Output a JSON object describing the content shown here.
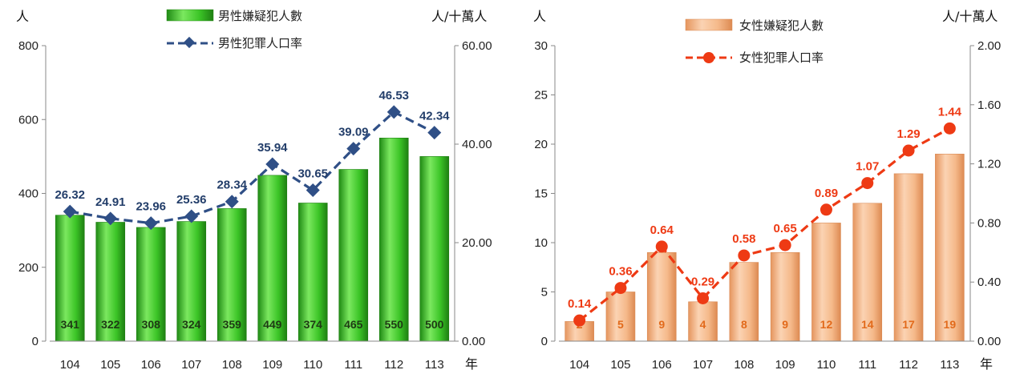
{
  "chart_data": [
    {
      "type": "bar",
      "categories": [
        "104",
        "105",
        "106",
        "107",
        "108",
        "109",
        "110",
        "111",
        "112",
        "113"
      ],
      "xunit": "年",
      "ylabel_left": "人",
      "ylabel_right": "人/十萬人",
      "ylim_left": [
        0,
        800
      ],
      "yticks_left": [
        "0",
        "200",
        "400",
        "600",
        "800"
      ],
      "ylim_right": [
        0,
        60
      ],
      "yticks_right": [
        "0.00",
        "20.00",
        "40.00",
        "60.00"
      ],
      "series": [
        {
          "name": "男性嫌疑犯人數",
          "kind": "bar",
          "axis": "left",
          "color": "#3fc22a",
          "values": [
            341,
            322,
            308,
            324,
            359,
            449,
            374,
            465,
            550,
            500
          ],
          "labels": [
            "341",
            "322",
            "308",
            "324",
            "359",
            "449",
            "374",
            "465",
            "550",
            "500"
          ]
        },
        {
          "name": "男性犯罪人口率",
          "kind": "line",
          "axis": "right",
          "color": "#2f4f86",
          "values": [
            26.32,
            24.91,
            23.96,
            25.36,
            28.34,
            35.94,
            30.65,
            39.09,
            46.53,
            42.34
          ],
          "labels": [
            "26.32",
            "24.91",
            "23.96",
            "25.36",
            "28.34",
            "35.94",
            "30.65",
            "39.09",
            "46.53",
            "42.34"
          ]
        }
      ]
    },
    {
      "type": "bar",
      "categories": [
        "104",
        "105",
        "106",
        "107",
        "108",
        "109",
        "110",
        "111",
        "112",
        "113"
      ],
      "xunit": "年",
      "ylabel_left": "人",
      "ylabel_right": "人/十萬人",
      "ylim_left": [
        0,
        30
      ],
      "yticks_left": [
        "0",
        "5",
        "10",
        "15",
        "20",
        "25",
        "30"
      ],
      "ylim_right": [
        0,
        2
      ],
      "yticks_right": [
        "0.00",
        "0.40",
        "0.80",
        "1.20",
        "1.60",
        "2.00"
      ],
      "series": [
        {
          "name": "女性嫌疑犯人數",
          "kind": "bar",
          "axis": "left",
          "color": "#f5b98a",
          "values": [
            2,
            5,
            9,
            4,
            8,
            9,
            12,
            14,
            17,
            19
          ],
          "labels": [
            "2",
            "5",
            "9",
            "4",
            "8",
            "9",
            "12",
            "14",
            "17",
            "19"
          ]
        },
        {
          "name": "女性犯罪人口率",
          "kind": "line",
          "axis": "right",
          "color": "#ee3a14",
          "values": [
            0.14,
            0.36,
            0.64,
            0.29,
            0.58,
            0.65,
            0.89,
            1.07,
            1.29,
            1.44
          ],
          "labels": [
            "0.14",
            "0.36",
            "0.64",
            "0.29",
            "0.58",
            "0.65",
            "0.89",
            "1.07",
            "1.29",
            "1.44"
          ]
        }
      ]
    }
  ]
}
